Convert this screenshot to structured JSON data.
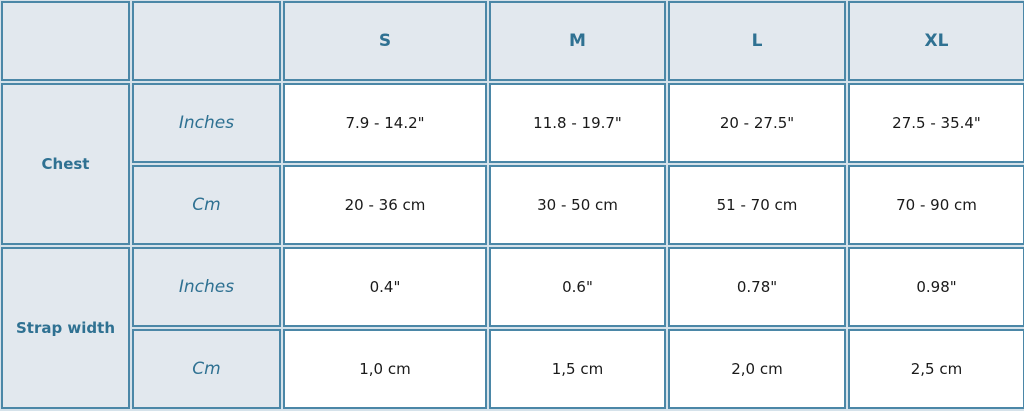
{
  "sizes": [
    "S",
    "M",
    "L",
    "XL"
  ],
  "groups": [
    {
      "label": "Chest",
      "rows": [
        {
          "unit": "Inches",
          "values": [
            "7.9 - 14.2\"",
            "11.8 - 19.7\"",
            "20 - 27.5\"",
            "27.5 - 35.4\""
          ]
        },
        {
          "unit": "Cm",
          "values": [
            "20 - 36 cm",
            "30 - 50 cm",
            "51 - 70 cm",
            "70 - 90 cm"
          ]
        }
      ]
    },
    {
      "label": "Strap width",
      "rows": [
        {
          "unit": "Inches",
          "values": [
            "0.4\"",
            "0.6\"",
            "0.78\"",
            "0.98\""
          ]
        },
        {
          "unit": "Cm",
          "values": [
            "1,0 cm",
            "1,5 cm",
            "2,0 cm",
            "2,5 cm"
          ]
        }
      ]
    }
  ],
  "colors": {
    "accent": "#2f7192",
    "border": "#4b87a7",
    "header_bg": "#e2e8ee"
  }
}
